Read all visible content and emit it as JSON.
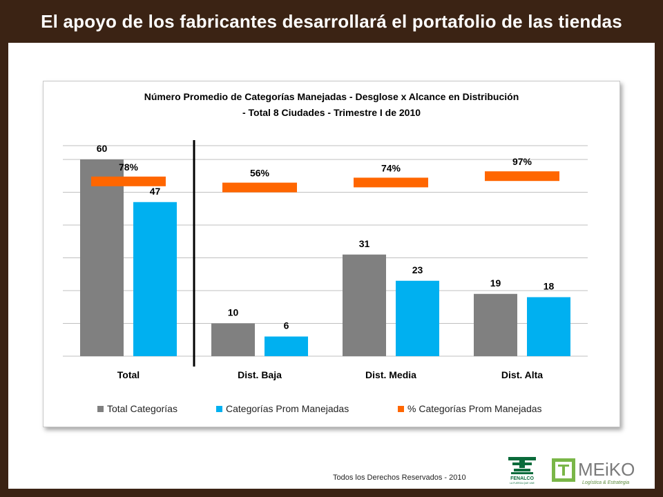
{
  "header": {
    "title": "El apoyo de los fabricantes desarrollará el portafolio de las tiendas"
  },
  "footer": {
    "copyright": "Todos los Derechos Reservados - 2010"
  },
  "logos": {
    "fenalco_name": "FENALCO",
    "fenalco_tagline": "LA FUERZA QUE UNE",
    "meiko_name": "MEiKO",
    "meiko_tagline": "Logística & Estrategia"
  },
  "chart_data": {
    "type": "bar",
    "title_line1": "Número Promedio de Categorías Manejadas - Desglose x Alcance en Distribución",
    "title_line2": "- Total 8 Ciudades - Trimestre I de 2010",
    "categories": [
      "Total",
      "Dist. Baja",
      "Dist. Media",
      "Dist. Alta"
    ],
    "series": [
      {
        "name": "Total Categorías",
        "values": [
          60,
          10,
          31,
          19
        ],
        "color": "#808080",
        "labels": [
          "60",
          "10",
          "31",
          "19"
        ]
      },
      {
        "name": "Categorías Prom Manejadas",
        "values": [
          47,
          6,
          23,
          18
        ],
        "color": "#00b0f0",
        "labels": [
          "47",
          "6",
          "23",
          "18"
        ]
      }
    ],
    "percent_series": {
      "name": "% Categorías Prom Manejadas",
      "values": [
        78,
        56,
        74,
        97
      ],
      "labels": [
        "78%",
        "56%",
        "74%",
        "97%"
      ],
      "color": "#ff6600"
    },
    "ylim": [
      0,
      80
    ],
    "grid": true,
    "legend_position": "bottom"
  }
}
